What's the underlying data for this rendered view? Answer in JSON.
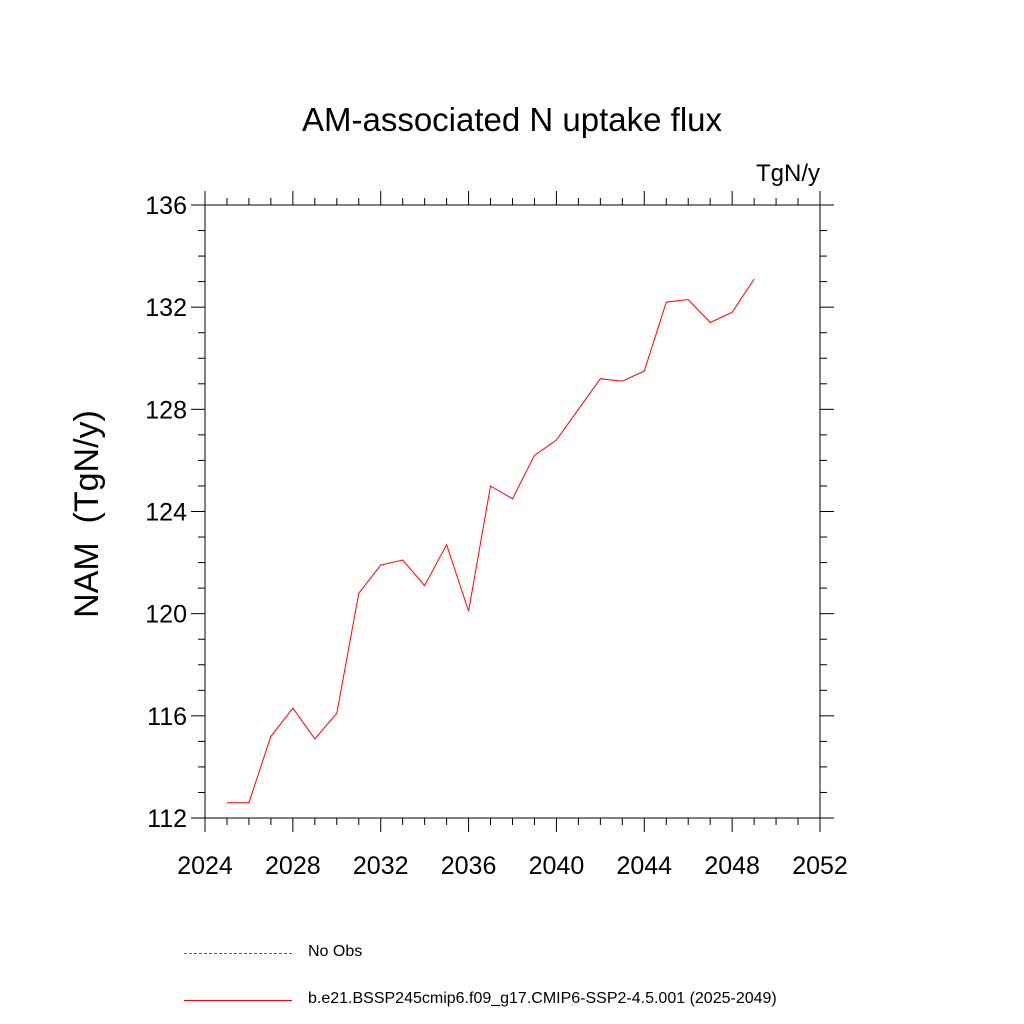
{
  "chart_data": {
    "type": "line",
    "title": "AM-associated N uptake flux",
    "units": "TgN/y",
    "ylabel": "NAM  (TgN/y)",
    "xlabel": "",
    "xlim": [
      2024,
      2052
    ],
    "ylim": [
      112,
      136
    ],
    "x_ticks": [
      "2024",
      "2028",
      "2032",
      "2036",
      "2040",
      "2044",
      "2048",
      "2052"
    ],
    "y_ticks": [
      "112",
      "116",
      "120",
      "124",
      "128",
      "132",
      "136"
    ],
    "grid": false,
    "legend_position": "bottom",
    "series": [
      {
        "name": "b.e21.BSSP245cmip6.f09_g17.CMIP6-SSP2-4.5.001 (2025-2049)",
        "color": "#ff0000",
        "dash": "solid",
        "x": [
          2025,
          2026,
          2027,
          2028,
          2029,
          2030,
          2031,
          2032,
          2033,
          2034,
          2035,
          2036,
          2037,
          2038,
          2039,
          2040,
          2041,
          2042,
          2043,
          2044,
          2045,
          2046,
          2047,
          2048,
          2049
        ],
        "y": [
          112.6,
          112.6,
          115.2,
          116.3,
          115.1,
          116.1,
          120.8,
          121.9,
          122.1,
          121.1,
          122.7,
          120.1,
          125.0,
          124.5,
          126.2,
          126.8,
          128.0,
          129.2,
          129.1,
          129.5,
          132.2,
          132.3,
          131.4,
          131.8,
          133.1
        ]
      }
    ],
    "legend": [
      {
        "label": "No Obs",
        "color": "#5a4fcf",
        "dash": "dashed"
      },
      {
        "label": "b.e21.BSSP245cmip6.f09_g17.CMIP6-SSP2-4.5.001 (2025-2049)",
        "color": "#ff0000",
        "dash": "solid"
      }
    ]
  }
}
